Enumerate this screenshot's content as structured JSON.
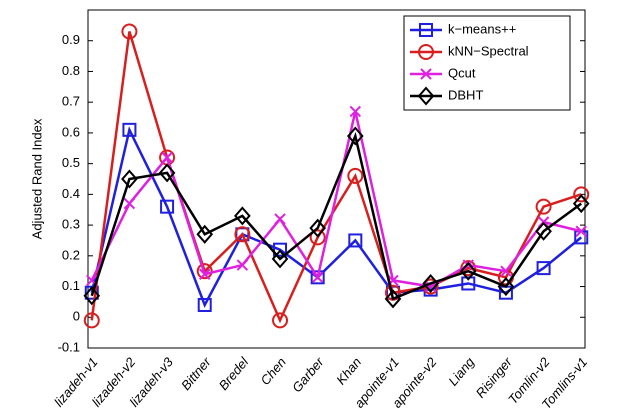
{
  "chart_data": {
    "type": "line",
    "y_label": "Adjusted Rand Index",
    "categories": [
      "lizadeh-v1",
      "lizadeh-v2",
      "lizadeh-v3",
      "Bittner",
      "Bredel",
      "Chen",
      "Garber",
      "Khan",
      "apointe-v1",
      "apointe-v2",
      "Liang",
      "Risinger",
      "Tomlin-v2",
      "Tomlins-v1"
    ],
    "series": [
      {
        "name": "k−means++",
        "color": "#1f1fe0",
        "marker": "square",
        "values": [
          0.08,
          0.61,
          0.36,
          0.04,
          0.27,
          0.22,
          0.13,
          0.25,
          0.08,
          0.09,
          0.11,
          0.08,
          0.16,
          0.26
        ]
      },
      {
        "name": "kNN−Spectral",
        "color": "#d91e1e",
        "marker": "circle",
        "values": [
          -0.01,
          0.93,
          0.52,
          0.15,
          0.27,
          -0.01,
          0.26,
          0.46,
          0.08,
          0.1,
          0.16,
          0.13,
          0.36,
          0.4
        ]
      },
      {
        "name": "Qcut",
        "color": "#e020e0",
        "marker": "x",
        "values": [
          0.12,
          0.37,
          0.52,
          0.14,
          0.17,
          0.32,
          0.13,
          0.67,
          0.12,
          0.1,
          0.17,
          0.15,
          0.31,
          0.28
        ]
      },
      {
        "name": "DBHT",
        "color": "#000000",
        "marker": "diamond",
        "values": [
          0.07,
          0.45,
          0.47,
          0.27,
          0.33,
          0.19,
          0.29,
          0.59,
          0.06,
          0.11,
          0.15,
          0.1,
          0.28,
          0.37
        ]
      }
    ],
    "ylim": [
      -0.1,
      1.0
    ],
    "yticks": [
      -0.1,
      0,
      0.1,
      0.2,
      0.3,
      0.4,
      0.5,
      0.6,
      0.7,
      0.8,
      0.9
    ],
    "grid": false,
    "legend": "top-right"
  }
}
